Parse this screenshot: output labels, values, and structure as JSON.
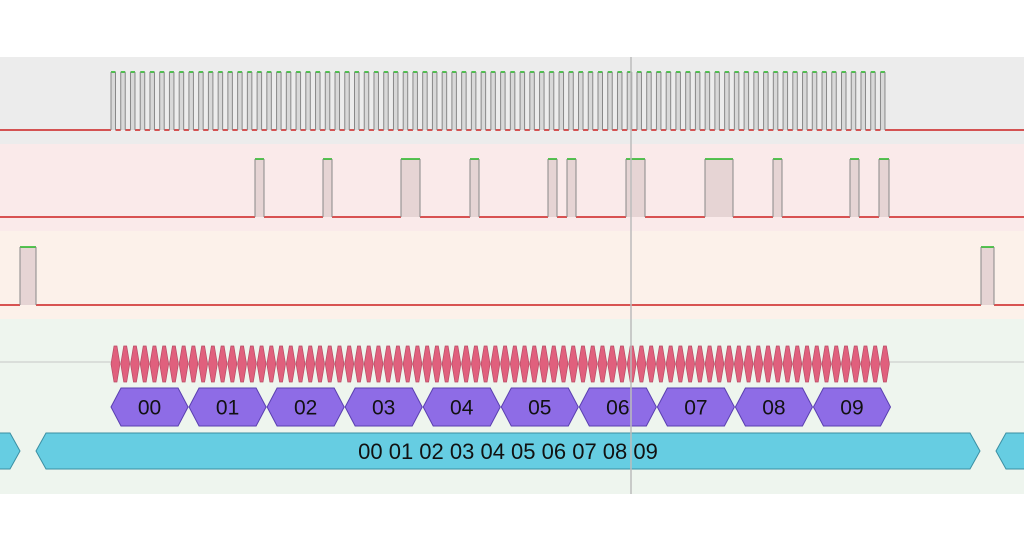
{
  "colors": {
    "lane_clock_bg": "#ececec",
    "lane_data_bg": "#faeaea",
    "lane_select_bg": "#fcf1ea",
    "lane_decode_bg": "#eef5ee",
    "signal_high": "#1fb51f",
    "signal_low": "#cc1f1f",
    "signal_edge": "#888888",
    "clock_fill": "#d8d8d8",
    "pulse_fill": "#e6d4d4",
    "bit_fill": "#e0607d",
    "byte_fill": "#8e6ce6",
    "frame_fill": "#66cde2",
    "cursor": "#bbbbbb"
  },
  "decoder": {
    "bytes": [
      "00",
      "01",
      "02",
      "03",
      "04",
      "05",
      "06",
      "07",
      "08",
      "09"
    ],
    "frame_label": "00 01 02 03 04 05 06 07 08 09"
  }
}
